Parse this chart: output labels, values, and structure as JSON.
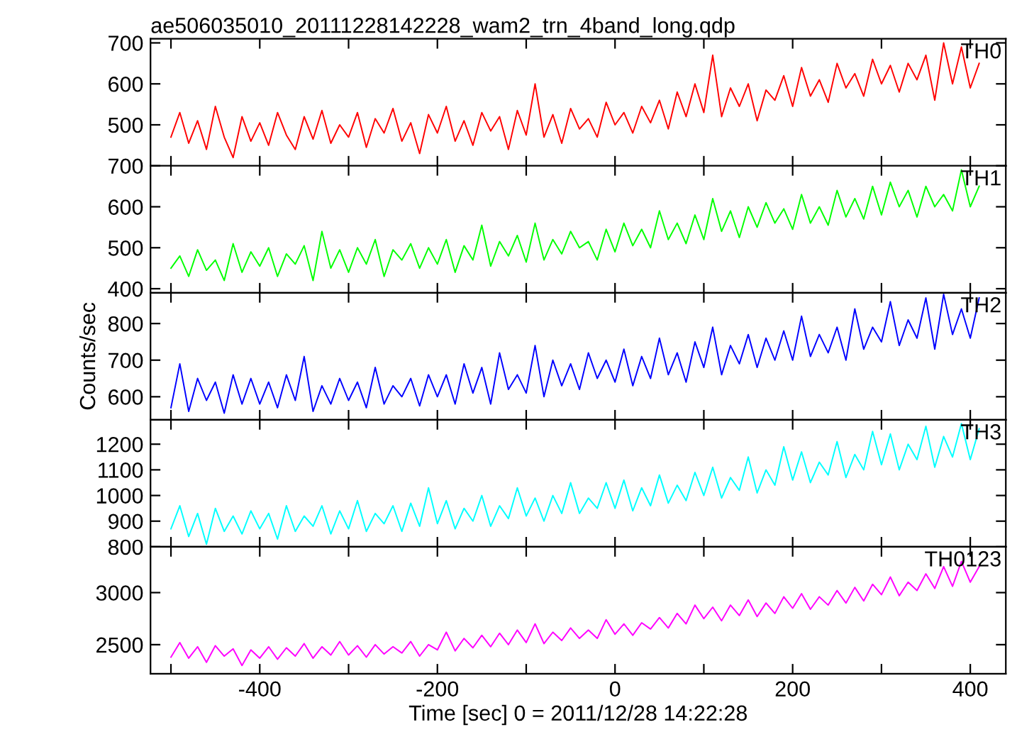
{
  "chart_data": [
    {
      "type": "line",
      "title": "ae506035010_20111228142228_wam2_trn_4band_long.qdp",
      "annotations": [
        "TH0"
      ],
      "tick_labels": "y",
      "x": [
        -500,
        -490,
        -480,
        -470,
        -460,
        -450,
        -440,
        -430,
        -420,
        -410,
        -400,
        -390,
        -380,
        -370,
        -360,
        -350,
        -340,
        -330,
        -320,
        -310,
        -300,
        -290,
        -280,
        -270,
        -260,
        -250,
        -240,
        -230,
        -220,
        -210,
        -200,
        -190,
        -180,
        -170,
        -160,
        -150,
        -140,
        -130,
        -120,
        -110,
        -100,
        -90,
        -80,
        -70,
        -60,
        -50,
        -40,
        -30,
        -20,
        -10,
        0,
        10,
        20,
        30,
        40,
        50,
        60,
        70,
        80,
        90,
        100,
        110,
        120,
        130,
        140,
        150,
        160,
        170,
        180,
        190,
        200,
        210,
        220,
        230,
        240,
        250,
        260,
        270,
        280,
        290,
        300,
        310,
        320,
        330,
        340,
        350,
        360,
        370,
        380,
        390,
        400,
        410
      ],
      "series": [
        {
          "color": "#ff0000",
          "values": [
            470,
            530,
            455,
            510,
            440,
            545,
            470,
            420,
            520,
            460,
            505,
            450,
            530,
            475,
            440,
            520,
            465,
            535,
            455,
            500,
            470,
            530,
            445,
            515,
            480,
            540,
            460,
            505,
            430,
            525,
            480,
            545,
            460,
            510,
            450,
            530,
            485,
            520,
            440,
            535,
            475,
            600,
            470,
            525,
            455,
            540,
            490,
            515,
            470,
            555,
            500,
            530,
            480,
            545,
            505,
            560,
            490,
            580,
            520,
            600,
            530,
            670,
            520,
            590,
            545,
            600,
            510,
            585,
            560,
            620,
            545,
            640,
            570,
            610,
            555,
            650,
            590,
            625,
            570,
            660,
            600,
            645,
            580,
            650,
            610,
            670,
            560,
            700,
            600,
            690,
            590,
            650
          ]
        }
      ],
      "xlim": [
        -523,
        440
      ],
      "ylim": [
        400,
        710
      ],
      "xticks": [
        {
          "value": -500,
          "label": null
        },
        -400,
        {
          "value": -300,
          "label": null
        },
        -200,
        {
          "value": -100,
          "label": null
        },
        0,
        {
          "value": 100,
          "label": null
        },
        200,
        {
          "value": 300,
          "label": null
        },
        400
      ],
      "yticks": [
        500,
        600,
        700
      ]
    },
    {
      "type": "line",
      "annotations": [
        "TH1"
      ],
      "tick_labels": "y",
      "x": [
        -500,
        -490,
        -480,
        -470,
        -460,
        -450,
        -440,
        -430,
        -420,
        -410,
        -400,
        -390,
        -380,
        -370,
        -360,
        -350,
        -340,
        -330,
        -320,
        -310,
        -300,
        -290,
        -280,
        -270,
        -260,
        -250,
        -240,
        -230,
        -220,
        -210,
        -200,
        -190,
        -180,
        -170,
        -160,
        -150,
        -140,
        -130,
        -120,
        -110,
        -100,
        -90,
        -80,
        -70,
        -60,
        -50,
        -40,
        -30,
        -20,
        -10,
        0,
        10,
        20,
        30,
        40,
        50,
        60,
        70,
        80,
        90,
        100,
        110,
        120,
        130,
        140,
        150,
        160,
        170,
        180,
        190,
        200,
        210,
        220,
        230,
        240,
        250,
        260,
        270,
        280,
        290,
        300,
        310,
        320,
        330,
        340,
        350,
        360,
        370,
        380,
        390,
        400,
        410
      ],
      "series": [
        {
          "color": "#00ff00",
          "values": [
            450,
            480,
            430,
            495,
            445,
            470,
            420,
            510,
            440,
            490,
            455,
            500,
            430,
            485,
            460,
            505,
            420,
            540,
            450,
            495,
            440,
            500,
            460,
            520,
            430,
            495,
            470,
            510,
            450,
            500,
            460,
            520,
            440,
            505,
            470,
            555,
            455,
            515,
            480,
            530,
            465,
            560,
            470,
            520,
            485,
            540,
            500,
            515,
            470,
            545,
            490,
            560,
            505,
            545,
            500,
            590,
            520,
            560,
            510,
            580,
            520,
            620,
            540,
            590,
            525,
            600,
            550,
            610,
            560,
            595,
            545,
            630,
            560,
            600,
            555,
            640,
            575,
            620,
            570,
            650,
            580,
            660,
            600,
            640,
            575,
            650,
            600,
            630,
            590,
            690,
            600,
            650
          ]
        }
      ],
      "xlim": [
        -523,
        440
      ],
      "ylim": [
        390,
        700
      ],
      "xticks": [
        {
          "value": -500,
          "label": null
        },
        -400,
        {
          "value": -300,
          "label": null
        },
        -200,
        {
          "value": -100,
          "label": null
        },
        0,
        {
          "value": 100,
          "label": null
        },
        200,
        {
          "value": 300,
          "label": null
        },
        400
      ],
      "yticks": [
        400,
        500,
        600,
        700
      ]
    },
    {
      "type": "line",
      "annotations": [
        "TH2"
      ],
      "tick_labels": "y",
      "ylabel": "Counts/sec",
      "x": [
        -500,
        -490,
        -480,
        -470,
        -460,
        -450,
        -440,
        -430,
        -420,
        -410,
        -400,
        -390,
        -380,
        -370,
        -360,
        -350,
        -340,
        -330,
        -320,
        -310,
        -300,
        -290,
        -280,
        -270,
        -260,
        -250,
        -240,
        -230,
        -220,
        -210,
        -200,
        -190,
        -180,
        -170,
        -160,
        -150,
        -140,
        -130,
        -120,
        -110,
        -100,
        -90,
        -80,
        -70,
        -60,
        -50,
        -40,
        -30,
        -20,
        -10,
        0,
        10,
        20,
        30,
        40,
        50,
        60,
        70,
        80,
        90,
        100,
        110,
        120,
        130,
        140,
        150,
        160,
        170,
        180,
        190,
        200,
        210,
        220,
        230,
        240,
        250,
        260,
        270,
        280,
        290,
        300,
        310,
        320,
        330,
        340,
        350,
        360,
        370,
        380,
        390,
        400,
        410
      ],
      "series": [
        {
          "color": "#0000ff",
          "values": [
            570,
            690,
            560,
            650,
            590,
            640,
            555,
            660,
            580,
            650,
            580,
            640,
            570,
            660,
            590,
            710,
            560,
            630,
            580,
            650,
            590,
            640,
            570,
            680,
            580,
            630,
            600,
            650,
            575,
            660,
            600,
            660,
            580,
            690,
            610,
            680,
            580,
            720,
            620,
            660,
            610,
            740,
            600,
            700,
            630,
            690,
            620,
            720,
            650,
            700,
            640,
            730,
            630,
            710,
            650,
            760,
            660,
            720,
            640,
            750,
            680,
            790,
            660,
            740,
            690,
            770,
            680,
            760,
            700,
            780,
            700,
            820,
            710,
            770,
            720,
            790,
            700,
            840,
            730,
            790,
            750,
            860,
            740,
            810,
            760,
            870,
            730,
            880,
            770,
            840,
            760,
            870
          ]
        }
      ],
      "xlim": [
        -523,
        440
      ],
      "ylim": [
        537,
        884
      ],
      "xticks": [
        {
          "value": -500,
          "label": null
        },
        -400,
        {
          "value": -300,
          "label": null
        },
        -200,
        {
          "value": -100,
          "label": null
        },
        0,
        {
          "value": 100,
          "label": null
        },
        200,
        {
          "value": 300,
          "label": null
        },
        400
      ],
      "yticks": [
        600,
        700,
        800
      ]
    },
    {
      "type": "line",
      "annotations": [
        "TH3"
      ],
      "tick_labels": "y",
      "x": [
        -500,
        -490,
        -480,
        -470,
        -460,
        -450,
        -440,
        -430,
        -420,
        -410,
        -400,
        -390,
        -380,
        -370,
        -360,
        -350,
        -340,
        -330,
        -320,
        -310,
        -300,
        -290,
        -280,
        -270,
        -260,
        -250,
        -240,
        -230,
        -220,
        -210,
        -200,
        -190,
        -180,
        -170,
        -160,
        -150,
        -140,
        -130,
        -120,
        -110,
        -100,
        -90,
        -80,
        -70,
        -60,
        -50,
        -40,
        -30,
        -20,
        -10,
        0,
        10,
        20,
        30,
        40,
        50,
        60,
        70,
        80,
        90,
        100,
        110,
        120,
        130,
        140,
        150,
        160,
        170,
        180,
        190,
        200,
        210,
        220,
        230,
        240,
        250,
        260,
        270,
        280,
        290,
        300,
        310,
        320,
        330,
        340,
        350,
        360,
        370,
        380,
        390,
        400,
        410
      ],
      "series": [
        {
          "color": "#00ffff",
          "values": [
            870,
            960,
            840,
            930,
            810,
            950,
            860,
            920,
            850,
            940,
            870,
            930,
            830,
            960,
            860,
            920,
            880,
            960,
            850,
            940,
            870,
            980,
            860,
            930,
            890,
            960,
            860,
            970,
            880,
            1030,
            890,
            980,
            870,
            950,
            900,
            1000,
            880,
            960,
            910,
            1030,
            920,
            990,
            900,
            1000,
            930,
            1050,
            930,
            990,
            950,
            1050,
            950,
            1060,
            940,
            1030,
            960,
            1080,
            970,
            1040,
            980,
            1090,
            1000,
            1110,
            990,
            1070,
            1020,
            1150,
            1010,
            1100,
            1040,
            1190,
            1060,
            1170,
            1050,
            1130,
            1080,
            1210,
            1070,
            1160,
            1100,
            1250,
            1120,
            1240,
            1100,
            1200,
            1140,
            1270,
            1110,
            1230,
            1150,
            1280,
            1140,
            1260
          ]
        }
      ],
      "xlim": [
        -523,
        440
      ],
      "ylim": [
        800,
        1295
      ],
      "xticks": [
        {
          "value": -500,
          "label": null
        },
        -400,
        {
          "value": -300,
          "label": null
        },
        -200,
        {
          "value": -100,
          "label": null
        },
        0,
        {
          "value": 100,
          "label": null
        },
        200,
        {
          "value": 300,
          "label": null
        },
        400
      ],
      "yticks": [
        800,
        900,
        1000,
        1100,
        1200
      ]
    },
    {
      "type": "line",
      "annotations": [
        "TH0123"
      ],
      "xlabel": "Time [sec] 0 = 2011/12/28 14:22:28",
      "x": [
        -500,
        -490,
        -480,
        -470,
        -460,
        -450,
        -440,
        -430,
        -420,
        -410,
        -400,
        -390,
        -380,
        -370,
        -360,
        -350,
        -340,
        -330,
        -320,
        -310,
        -300,
        -290,
        -280,
        -270,
        -260,
        -250,
        -240,
        -230,
        -220,
        -210,
        -200,
        -190,
        -180,
        -170,
        -160,
        -150,
        -140,
        -130,
        -120,
        -110,
        -100,
        -90,
        -80,
        -70,
        -60,
        -50,
        -40,
        -30,
        -20,
        -10,
        0,
        10,
        20,
        30,
        40,
        50,
        60,
        70,
        80,
        90,
        100,
        110,
        120,
        130,
        140,
        150,
        160,
        170,
        180,
        190,
        200,
        210,
        220,
        230,
        240,
        250,
        260,
        270,
        280,
        290,
        300,
        310,
        320,
        330,
        340,
        350,
        360,
        370,
        380,
        390,
        400,
        410
      ],
      "series": [
        {
          "color": "#ff00ff",
          "values": [
            2380,
            2520,
            2370,
            2480,
            2330,
            2490,
            2390,
            2460,
            2300,
            2450,
            2370,
            2480,
            2360,
            2470,
            2390,
            2510,
            2370,
            2480,
            2400,
            2530,
            2400,
            2490,
            2380,
            2500,
            2410,
            2480,
            2420,
            2530,
            2390,
            2500,
            2450,
            2620,
            2440,
            2560,
            2470,
            2590,
            2480,
            2610,
            2500,
            2640,
            2520,
            2700,
            2510,
            2620,
            2540,
            2660,
            2560,
            2640,
            2560,
            2740,
            2600,
            2700,
            2590,
            2710,
            2650,
            2760,
            2660,
            2800,
            2700,
            2880,
            2750,
            2860,
            2730,
            2880,
            2780,
            2930,
            2770,
            2900,
            2800,
            2960,
            2850,
            2990,
            2840,
            2960,
            2880,
            3020,
            2900,
            3050,
            2920,
            3080,
            2980,
            3150,
            2970,
            3100,
            3020,
            3180,
            3040,
            3250,
            3060,
            3300,
            3100,
            3250
          ]
        }
      ],
      "xlim": [
        -523,
        440
      ],
      "ylim": [
        2220,
        3440
      ],
      "xticks": [
        {
          "value": -500,
          "label": null
        },
        -400,
        {
          "value": -300,
          "label": null
        },
        -200,
        {
          "value": -100,
          "label": null
        },
        0,
        {
          "value": 100,
          "label": null
        },
        200,
        {
          "value": 300,
          "label": null
        },
        400
      ],
      "yticks": [
        2500,
        3000
      ]
    }
  ]
}
